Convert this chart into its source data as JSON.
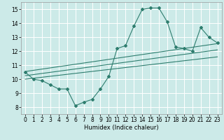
{
  "xlabel": "Humidex (Indice chaleur)",
  "bg_color": "#cceae8",
  "grid_color": "#ffffff",
  "line_color": "#2e7d6e",
  "xlim": [
    -0.5,
    23.5
  ],
  "ylim": [
    7.5,
    15.5
  ],
  "xticks": [
    0,
    1,
    2,
    3,
    4,
    5,
    6,
    7,
    8,
    9,
    10,
    11,
    12,
    13,
    14,
    15,
    16,
    17,
    18,
    19,
    20,
    21,
    22,
    23
  ],
  "yticks": [
    8,
    9,
    10,
    11,
    12,
    13,
    14,
    15
  ],
  "series": [
    [
      0,
      10.5
    ],
    [
      1,
      10.0
    ],
    [
      2,
      9.9
    ],
    [
      3,
      9.6
    ],
    [
      4,
      9.3
    ],
    [
      5,
      9.3
    ],
    [
      6,
      8.1
    ],
    [
      7,
      8.35
    ],
    [
      8,
      8.55
    ],
    [
      9,
      9.3
    ],
    [
      10,
      10.2
    ],
    [
      11,
      12.2
    ],
    [
      12,
      12.4
    ],
    [
      13,
      13.8
    ],
    [
      14,
      15.0
    ],
    [
      15,
      15.1
    ],
    [
      16,
      15.1
    ],
    [
      17,
      14.1
    ],
    [
      18,
      12.3
    ],
    [
      19,
      12.2
    ],
    [
      20,
      12.0
    ],
    [
      21,
      13.7
    ],
    [
      22,
      13.0
    ],
    [
      23,
      12.6
    ]
  ],
  "trend_lines": [
    [
      [
        0,
        10.55
      ],
      [
        23,
        12.55
      ]
    ],
    [
      [
        0,
        10.25
      ],
      [
        23,
        12.1
      ]
    ],
    [
      [
        0,
        10.0
      ],
      [
        23,
        11.6
      ]
    ]
  ]
}
